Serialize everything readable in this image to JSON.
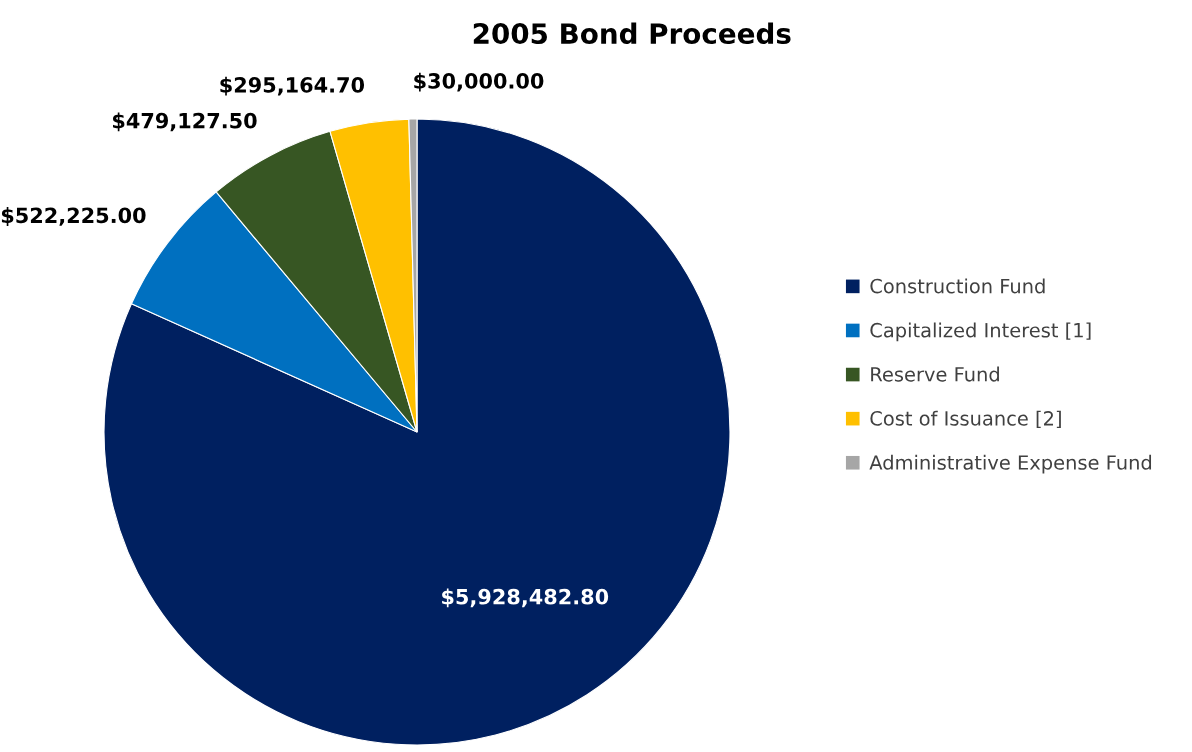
{
  "chart_data": {
    "type": "pie",
    "title": "2005 Bond Proceeds",
    "categories": [
      "Construction Fund",
      "Capitalized Interest [1]",
      "Reserve Fund",
      "Cost of Issuance [2]",
      "Administrative Expense Fund"
    ],
    "values": [
      5928482.8,
      522225.0,
      479127.5,
      295164.7,
      30000.0
    ],
    "value_labels": [
      "$5,928,482.80",
      "$522,225.00",
      "$479,127.50",
      "$295,164.70",
      "$30,000.00"
    ],
    "colors": [
      "#002060",
      "#0070c0",
      "#375623",
      "#ffc000",
      "#a6a6a6"
    ],
    "legend": "right"
  }
}
